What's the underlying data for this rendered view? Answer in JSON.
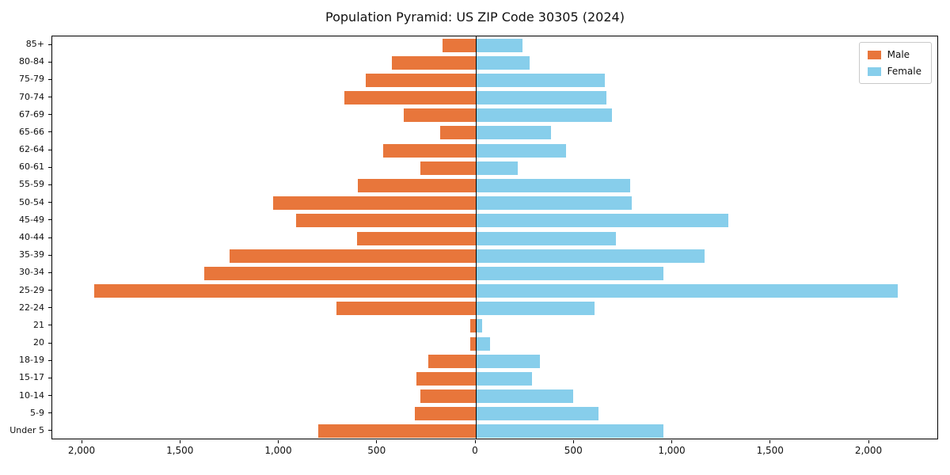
{
  "title": "Population Pyramid: US ZIP Code 30305 (2024)",
  "legend": {
    "male": "Male",
    "female": "Female"
  },
  "colors": {
    "male": "#e8763b",
    "female": "#87ceeb",
    "axis": "#000000"
  },
  "chart_data": {
    "type": "bar",
    "subtype": "population-pyramid",
    "orientation": "horizontal",
    "title": "Population Pyramid: US ZIP Code 30305 (2024)",
    "xlabel": "",
    "ylabel": "",
    "grid": false,
    "legend_position": "upper right",
    "categories_top_to_bottom": [
      "85+",
      "80-84",
      "75-79",
      "70-74",
      "67-69",
      "65-66",
      "62-64",
      "60-61",
      "55-59",
      "50-54",
      "45-49",
      "40-44",
      "35-39",
      "30-34",
      "25-29",
      "22-24",
      "21",
      "20",
      "18-19",
      "15-17",
      "10-14",
      "5-9",
      "Under 5"
    ],
    "series": [
      {
        "name": "Male",
        "side": "left",
        "color": "#e8763b",
        "values": [
          170,
          425,
          560,
          670,
          365,
          180,
          470,
          280,
          600,
          1030,
          915,
          605,
          1250,
          1380,
          1940,
          710,
          30,
          30,
          240,
          300,
          280,
          310,
          800
        ]
      },
      {
        "name": "Female",
        "side": "right",
        "color": "#87ceeb",
        "values": [
          235,
          270,
          650,
          660,
          690,
          380,
          455,
          210,
          780,
          790,
          1280,
          710,
          1160,
          950,
          2140,
          600,
          30,
          70,
          320,
          280,
          490,
          620,
          950
        ]
      }
    ],
    "x_tick_values": [
      -2000,
      -1500,
      -1000,
      -500,
      0,
      500,
      1000,
      1500,
      2000
    ],
    "x_tick_labels": [
      "2,000",
      "1,500",
      "1,000",
      "500",
      "0",
      "500",
      "1,000",
      "1,500",
      "2,000"
    ],
    "xlim": [
      -2150,
      2355
    ]
  }
}
